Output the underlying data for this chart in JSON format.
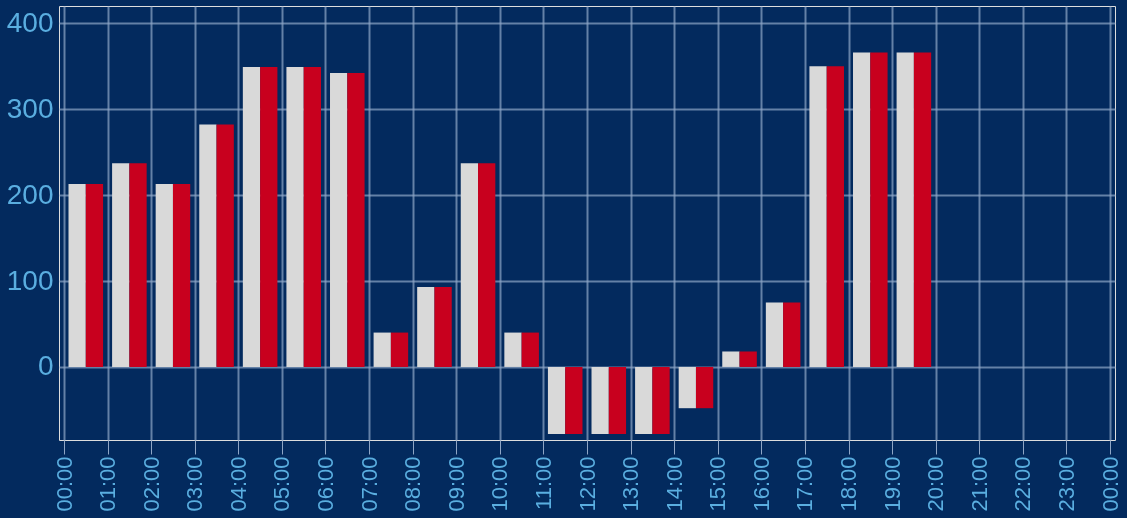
{
  "chart_data": {
    "type": "bar",
    "x": [
      0.5,
      1.5,
      2.5,
      3.5,
      4.5,
      5.5,
      6.5,
      7.5,
      8.5,
      9.5,
      10.5,
      11.5,
      12.5,
      13.5,
      14.5,
      15.5,
      16.5,
      17.5,
      18.5,
      19.5
    ],
    "series": [
      {
        "color": "#d9d9d9",
        "values": [
          213,
          237,
          213,
          282,
          349,
          349,
          342,
          40,
          93,
          237,
          40,
          -78,
          -78,
          -78,
          -48,
          18,
          75,
          350,
          366,
          366
        ]
      },
      {
        "color": "#c8001e",
        "values": [
          213,
          237,
          213,
          282,
          349,
          349,
          342,
          40,
          93,
          237,
          40,
          -78,
          -78,
          -78,
          -48,
          18,
          75,
          350,
          366,
          366
        ]
      }
    ],
    "xlim": [
      0,
      24
    ],
    "xticks": [
      {
        "value": 0,
        "label": "00:00"
      },
      {
        "value": 1,
        "label": "01:00"
      },
      {
        "value": 2,
        "label": "02:00"
      },
      {
        "value": 3,
        "label": "03:00"
      },
      {
        "value": 4,
        "label": "04:00"
      },
      {
        "value": 5,
        "label": "05:00"
      },
      {
        "value": 6,
        "label": "06:00"
      },
      {
        "value": 7,
        "label": "07:00"
      },
      {
        "value": 8,
        "label": "08:00"
      },
      {
        "value": 9,
        "label": "09:00"
      },
      {
        "value": 10,
        "label": "10:00"
      },
      {
        "value": 11,
        "label": "11:00"
      },
      {
        "value": 12,
        "label": "12:00"
      },
      {
        "value": 13,
        "label": "13:00"
      },
      {
        "value": 14,
        "label": "14:00"
      },
      {
        "value": 15,
        "label": "15:00"
      },
      {
        "value": 16,
        "label": "16:00"
      },
      {
        "value": 17,
        "label": "17:00"
      },
      {
        "value": 18,
        "label": "18:00"
      },
      {
        "value": 19,
        "label": "19:00"
      },
      {
        "value": 20,
        "label": "20:00"
      },
      {
        "value": 21,
        "label": "21:00"
      },
      {
        "value": 22,
        "label": "22:00"
      },
      {
        "value": 23,
        "label": "23:00"
      },
      {
        "value": 24,
        "label": "00:00"
      }
    ],
    "ylim": [
      -85,
      420
    ],
    "yticks": [
      0,
      100,
      200,
      300,
      400
    ],
    "grid": true
  }
}
